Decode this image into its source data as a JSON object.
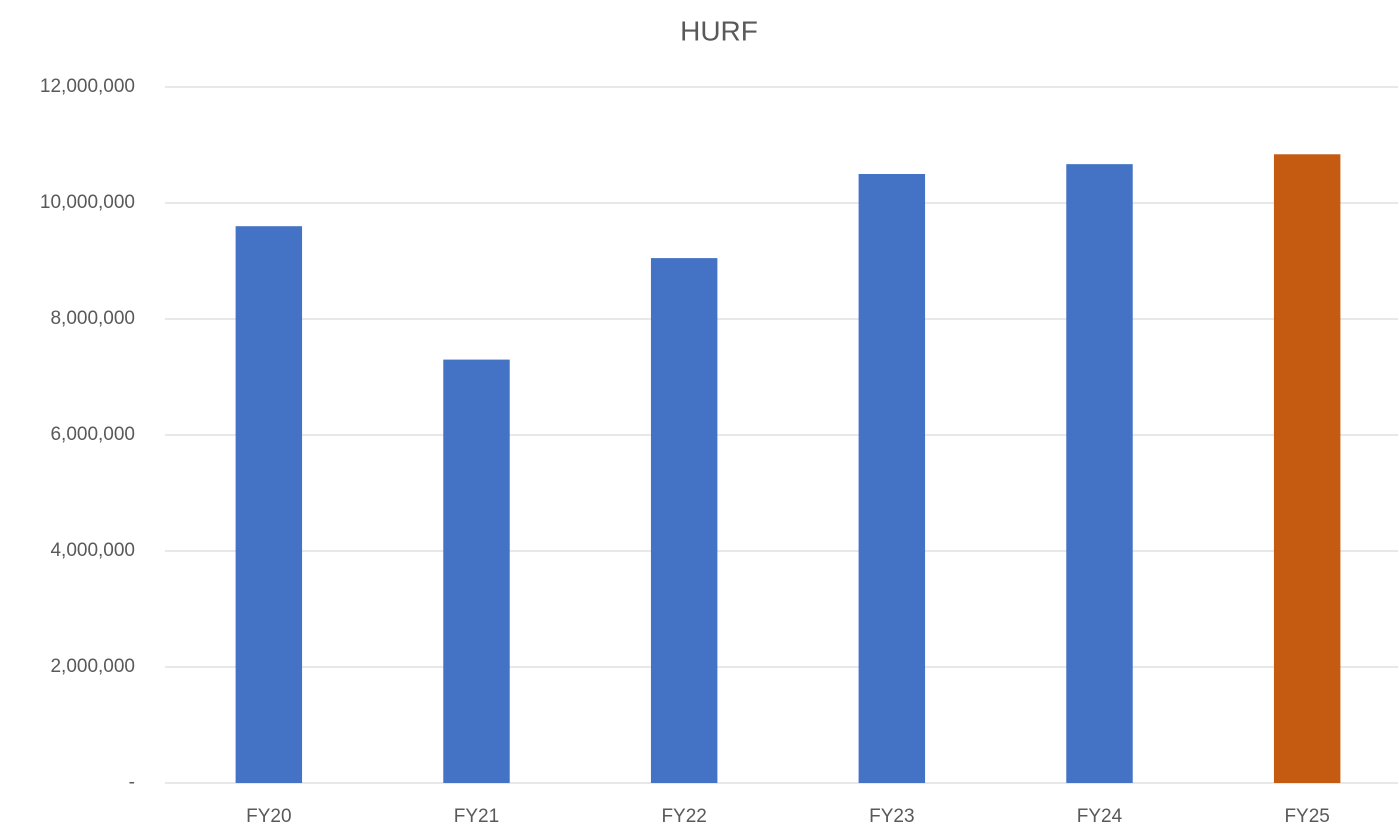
{
  "chart_data": {
    "type": "bar",
    "title": "HURF",
    "categories": [
      "FY20",
      "FY21",
      "FY22",
      "FY23",
      "FY24",
      "FY25"
    ],
    "values": [
      9600000,
      7300000,
      9050000,
      10500000,
      10670000,
      10840000
    ],
    "colors": [
      "#4472c4",
      "#4472c4",
      "#4472c4",
      "#4472c4",
      "#4472c4",
      "#c55a11"
    ],
    "ylim": [
      0,
      12000000
    ],
    "yticks": [
      {
        "value": 0,
        "label": "-"
      },
      {
        "value": 2000000,
        "label": "2,000,000"
      },
      {
        "value": 4000000,
        "label": "4,000,000"
      },
      {
        "value": 6000000,
        "label": "6,000,000"
      },
      {
        "value": 8000000,
        "label": "8,000,000"
      },
      {
        "value": 10000000,
        "label": "10,000,000"
      },
      {
        "value": 12000000,
        "label": "12,000,000"
      }
    ],
    "grid": true
  }
}
